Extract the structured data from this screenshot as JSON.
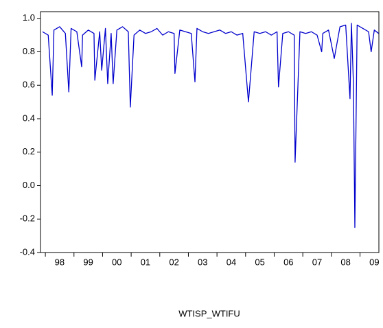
{
  "chart_data": {
    "type": "line",
    "x_label": "WTISP_WTIFU",
    "x": [
      1997.9,
      1998.1,
      1998.24,
      1998.3,
      1998.5,
      1998.7,
      1998.82,
      1998.9,
      1999.1,
      1999.27,
      1999.3,
      1999.5,
      1999.7,
      1999.73,
      1999.9,
      1999.97,
      2000.1,
      2000.18,
      2000.3,
      2000.37,
      2000.5,
      2000.7,
      2000.9,
      2000.97,
      2001.1,
      2001.3,
      2001.5,
      2001.7,
      2001.9,
      2002.1,
      2002.3,
      2002.5,
      2002.53,
      2002.7,
      2002.9,
      2003.1,
      2003.23,
      2003.3,
      2003.5,
      2003.7,
      2003.9,
      2004.1,
      2004.3,
      2004.5,
      2004.7,
      2004.9,
      2005.1,
      2005.3,
      2005.5,
      2005.7,
      2005.9,
      2006.1,
      2006.15,
      2006.3,
      2006.5,
      2006.7,
      2006.73,
      2006.9,
      2007.1,
      2007.3,
      2007.5,
      2007.66,
      2007.7,
      2007.9,
      2008.1,
      2008.3,
      2008.5,
      2008.65,
      2008.7,
      2008.77,
      2008.82,
      2008.9,
      2009.1,
      2009.3,
      2009.39,
      2009.5,
      2009.65
    ],
    "series": [
      {
        "name": "WTISP_WTIFU",
        "color": "#0000cc",
        "values": [
          0.92,
          0.9,
          0.54,
          0.93,
          0.95,
          0.91,
          0.56,
          0.94,
          0.92,
          0.71,
          0.9,
          0.93,
          0.91,
          0.63,
          0.92,
          0.69,
          0.94,
          0.61,
          0.91,
          0.61,
          0.93,
          0.95,
          0.92,
          0.47,
          0.9,
          0.93,
          0.91,
          0.92,
          0.94,
          0.9,
          0.92,
          0.91,
          0.67,
          0.93,
          0.92,
          0.91,
          0.62,
          0.94,
          0.92,
          0.91,
          0.92,
          0.93,
          0.91,
          0.92,
          0.9,
          0.91,
          0.5,
          0.92,
          0.91,
          0.92,
          0.9,
          0.92,
          0.59,
          0.91,
          0.92,
          0.9,
          0.14,
          0.92,
          0.91,
          0.92,
          0.9,
          0.8,
          0.91,
          0.93,
          0.76,
          0.95,
          0.96,
          0.52,
          0.97,
          0.61,
          -0.25,
          0.96,
          0.94,
          0.92,
          0.8,
          0.93,
          0.91
        ]
      }
    ],
    "xlim": [
      1997.83,
      2009.66
    ],
    "xticks": [
      {
        "value": 1998,
        "label": "98"
      },
      {
        "value": 1999,
        "label": "99"
      },
      {
        "value": 2000,
        "label": "00"
      },
      {
        "value": 2001,
        "label": "01"
      },
      {
        "value": 2002,
        "label": "02"
      },
      {
        "value": 2003,
        "label": "03"
      },
      {
        "value": 2004,
        "label": "04"
      },
      {
        "value": 2005,
        "label": "05"
      },
      {
        "value": 2006,
        "label": "06"
      },
      {
        "value": 2007,
        "label": "07"
      },
      {
        "value": 2008,
        "label": "08"
      },
      {
        "value": 2009,
        "label": "09"
      }
    ],
    "ylim": [
      -0.4,
      1.04
    ],
    "yticks": [
      -0.4,
      -0.2,
      {
        "value": 0,
        "label": "0.0"
      },
      0.2,
      0.4,
      0.6,
      0.8,
      {
        "value": 1,
        "label": "1.0"
      }
    ],
    "grid": false
  }
}
